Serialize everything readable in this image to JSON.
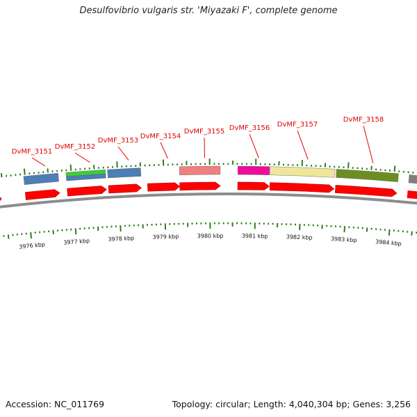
{
  "title": "Desulfovibrio vulgaris str. 'Miyazaki F', complete genome",
  "accession_label": "Accession: NC_011769",
  "summary_label": "Topology: circular; Length: 4,040,304 bp; Genes: 3,256",
  "colors": {
    "cds": "#ff0000",
    "backbone": "#8c8c8c",
    "tick": "#2e7d1e",
    "label": "#e00000",
    "leader": "#e00000"
  },
  "chart_data": {
    "type": "genome-map",
    "kbp_axis": [
      {
        "kbp": 3976,
        "label": "3976 kbp"
      },
      {
        "kbp": 3977,
        "label": "3977 kbp"
      },
      {
        "kbp": 3978,
        "label": "3978 kbp"
      },
      {
        "kbp": 3979,
        "label": "3979 kbp"
      },
      {
        "kbp": 3980,
        "label": "3980 kbp"
      },
      {
        "kbp": 3981,
        "label": "3981 kbp"
      },
      {
        "kbp": 3982,
        "label": "3982 kbp"
      },
      {
        "kbp": 3983,
        "label": "3983 kbp"
      },
      {
        "kbp": 3984,
        "label": "3984 kbp"
      }
    ],
    "genes": [
      {
        "name": "DvMF_3151",
        "cog_colors": [
          "#4b7fb5"
        ]
      },
      {
        "name": "DvMF_3152",
        "cog_colors": [
          "#3dcc3d",
          "#4b7fb5"
        ]
      },
      {
        "name": "DvMF_3153",
        "cog_colors": [
          "#4b7fb5"
        ]
      },
      {
        "name": "DvMF_3154",
        "cog_colors": []
      },
      {
        "name": "DvMF_3155",
        "cog_colors": [
          "#f08080"
        ]
      },
      {
        "name": "DvMF_3156",
        "cog_colors": [
          "#ee0c9a"
        ]
      },
      {
        "name": "DvMF_3157",
        "cog_colors": [
          "#efe69a"
        ]
      },
      {
        "name": "DvMF_3158",
        "cog_colors": [
          "#6b8e23"
        ]
      }
    ]
  }
}
